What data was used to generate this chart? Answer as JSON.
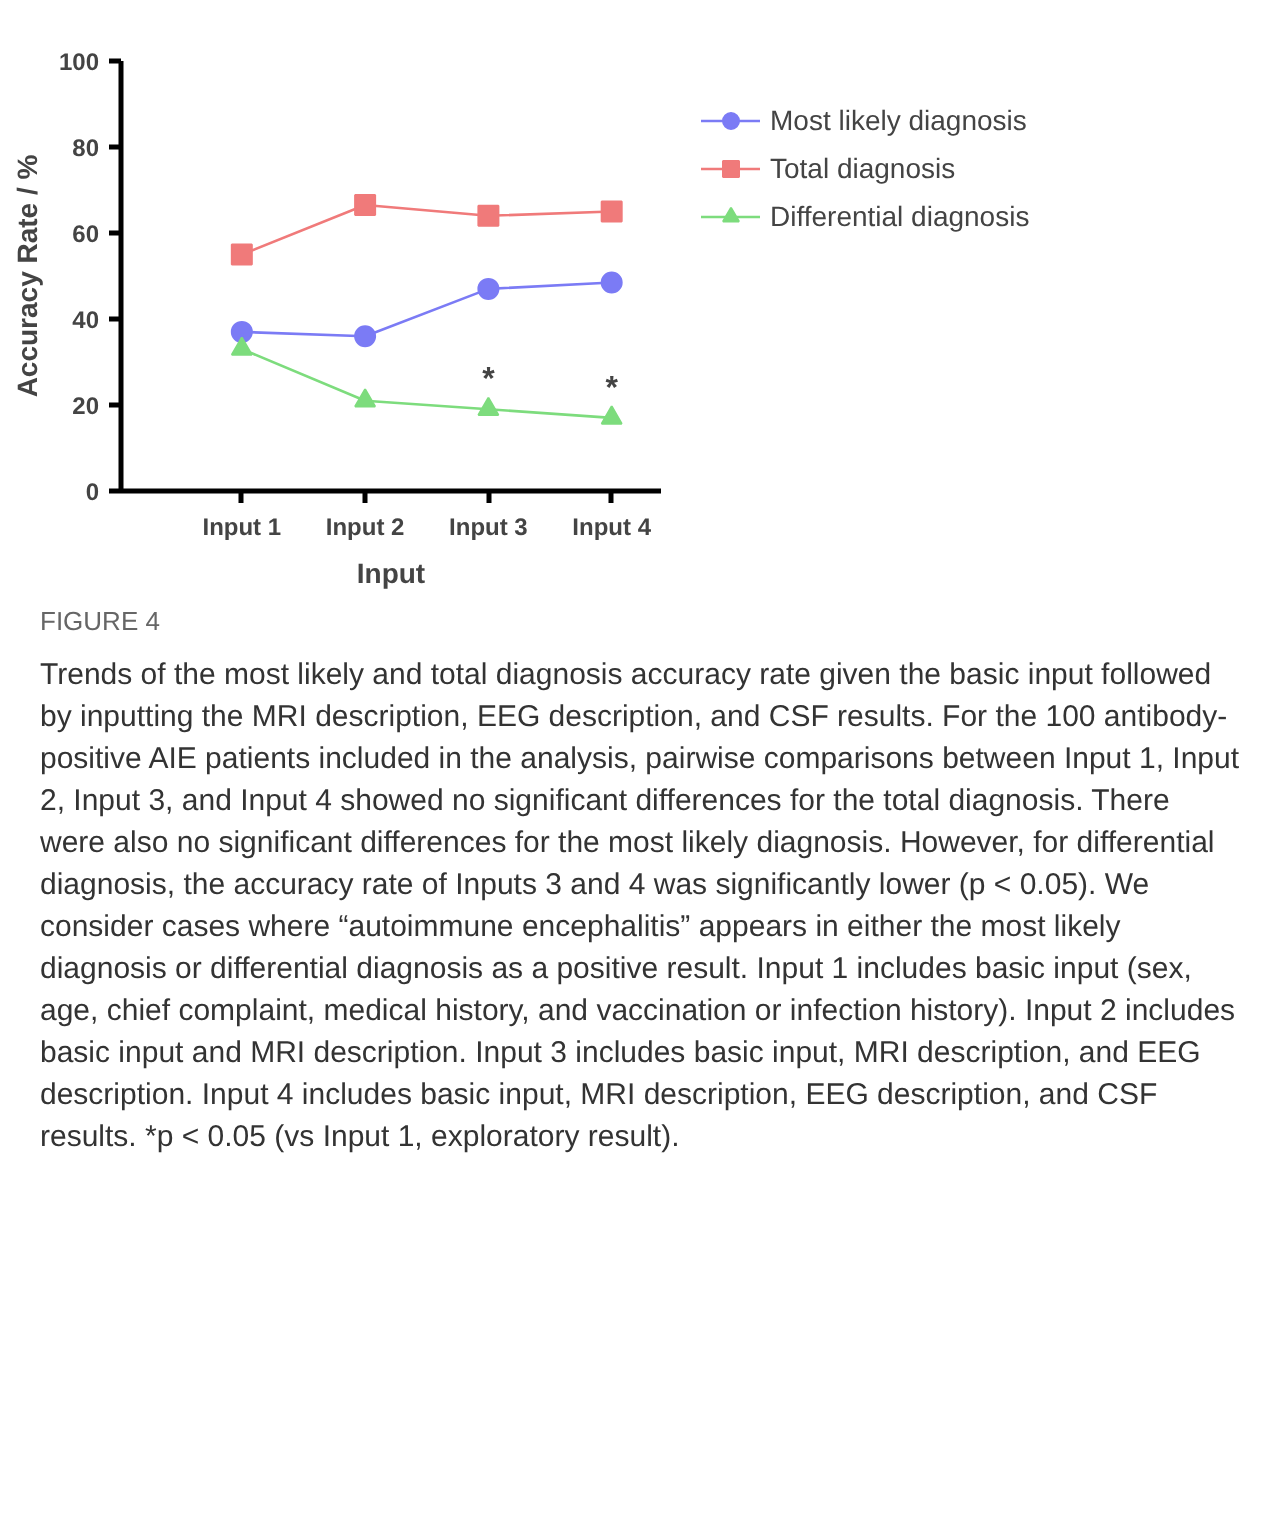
{
  "chart_data": {
    "type": "line",
    "title": "FIGURE 4",
    "xlabel": "Input",
    "ylabel": "Accuracy Rate / %",
    "categories": [
      "Input 1",
      "Input 2",
      "Input 3",
      "Input 4"
    ],
    "series": [
      {
        "name": "Most likely diagnosis",
        "color": "#7b7bf5",
        "marker": "circle",
        "values": [
          37,
          36,
          47,
          48.5
        ]
      },
      {
        "name": "Total diagnosis",
        "color": "#f07a7a",
        "marker": "square",
        "values": [
          55,
          66.5,
          64,
          65
        ]
      },
      {
        "name": "Differential diagnosis",
        "color": "#7ddc7d",
        "marker": "triangle",
        "values": [
          33,
          21,
          19,
          17
        ]
      }
    ],
    "ylim": [
      0,
      100
    ],
    "yticks": [
      0,
      20,
      40,
      60,
      80,
      100
    ],
    "grid": false,
    "legend": "top right",
    "line_style": "solid",
    "annotations": [
      {
        "text": "*",
        "x": "Input 3",
        "y": 19
      },
      {
        "text": "*",
        "x": "Input 4",
        "y": 17
      },
      "Trends of the most likely and total diagnosis accuracy rate given the basic input followed by inputting the MRI description, EEG description, and CSF results. For the 100 antibody-positive AIE patients included in the analysis, pairwise comparisons between Input 1, Input 2, Input 3, and Input 4 showed no significant differences for the total diagnosis. There were also no significant differences for the most likely diagnosis. However, for differential diagnosis, the accuracy rate of Inputs 3 and 4 was significantly lower (p < 0.05). We consider cases where “autoimmune encephalitis” appears in either the most likely diagnosis or differential diagnosis as a positive result. Input 1 includes basic input (sex, age, chief complaint, medical history, and vaccination or infection history). Input 2 includes basic input and MRI description. Input 3 includes basic input, MRI description, and EEG description. Input 4 includes basic input, MRI description, EEG description, and CSF results. *p < 0.05 (vs Input 1, exploratory result)."
    ]
  }
}
